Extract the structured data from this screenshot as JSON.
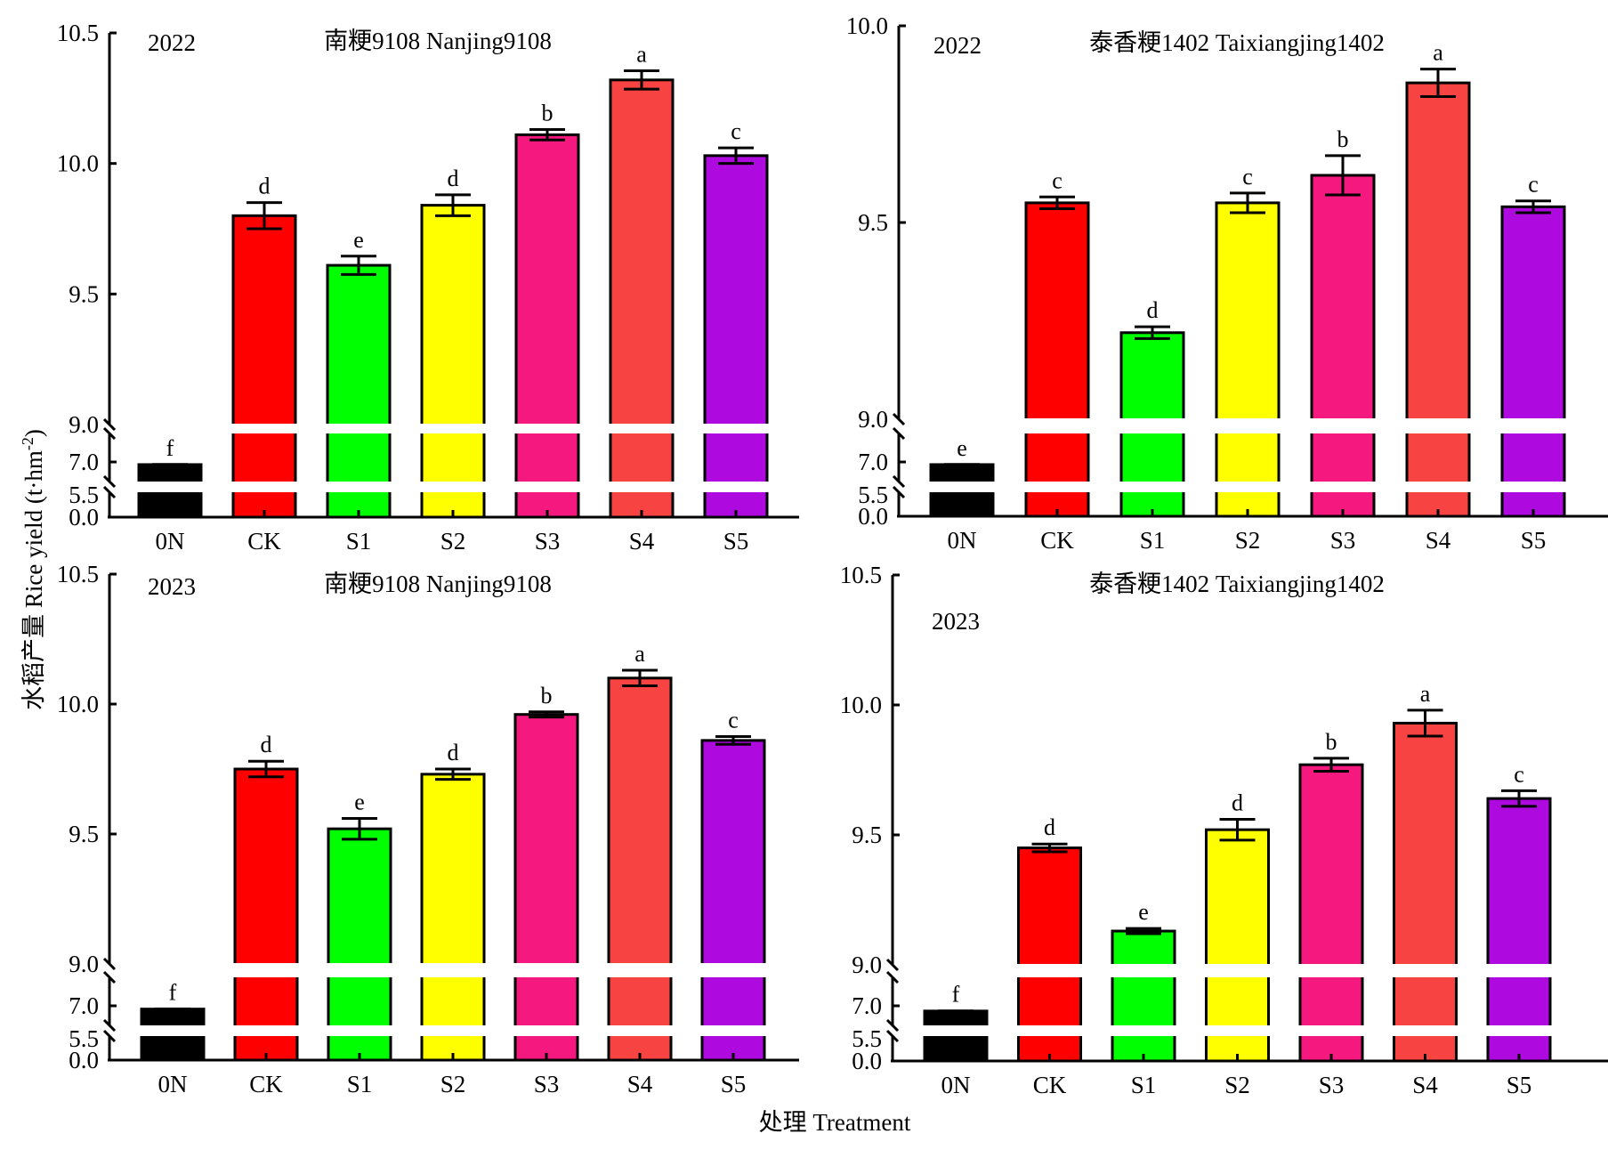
{
  "chart_data": {
    "type": "bar",
    "xlabel": "处理 Treatment",
    "ylabel": "水稻产量 Rice yield (t·hm",
    "ylabel_sup": "-2",
    "ylabel_close": ")",
    "categories": [
      "0N",
      "CK",
      "S1",
      "S2",
      "S3",
      "S4",
      "S5"
    ],
    "colors": [
      "#000000",
      "#ff0000",
      "#00ff00",
      "#ffff00",
      "#f5187e",
      "#f84343",
      "#ae0ae0"
    ],
    "axis_break": {
      "segments": [
        [
          0.0,
          5.5
        ],
        [
          5.5,
          9.0
        ]
      ],
      "labels": [
        "0.0",
        "5.5",
        "7.0",
        "9.0"
      ]
    },
    "panels": [
      {
        "year": "2022",
        "title": "南粳9108 Nanjing9108",
        "ylim_upper": [
          9.0,
          10.5
        ],
        "upper_ticks": [
          "9.0",
          "9.5",
          "10.0",
          "10.5"
        ],
        "values": [
          6.8,
          9.8,
          9.61,
          9.84,
          10.11,
          10.32,
          10.03
        ],
        "errors": [
          0.01,
          0.05,
          0.035,
          0.04,
          0.02,
          0.035,
          0.03
        ],
        "significance": [
          "f",
          "d",
          "e",
          "d",
          "b",
          "a",
          "c"
        ]
      },
      {
        "year": "2022",
        "title": "泰香粳1402 Taixiangjing1402",
        "ylim_upper": [
          9.0,
          10.0
        ],
        "upper_ticks": [
          "9.0",
          "9.5",
          "10.0"
        ],
        "values": [
          6.8,
          9.55,
          9.22,
          9.55,
          9.62,
          9.855,
          9.54
        ],
        "errors": [
          0.01,
          0.015,
          0.015,
          0.025,
          0.05,
          0.035,
          0.015
        ],
        "significance": [
          "e",
          "c",
          "d",
          "c",
          "b",
          "a",
          "c"
        ]
      },
      {
        "year": "2023",
        "title": "南粳9108 Nanjing9108",
        "ylim_upper": [
          9.0,
          10.5
        ],
        "upper_ticks": [
          "9.0",
          "9.5",
          "10.0",
          "10.5"
        ],
        "values": [
          6.75,
          9.75,
          9.52,
          9.73,
          9.96,
          10.1,
          9.86
        ],
        "errors": [
          0.01,
          0.03,
          0.04,
          0.02,
          0.01,
          0.03,
          0.015
        ],
        "significance": [
          "f",
          "d",
          "e",
          "d",
          "b",
          "a",
          "c"
        ]
      },
      {
        "year": "2023",
        "title": "泰香粳1402 Taixiangjing1402",
        "ylim_upper": [
          9.0,
          10.5
        ],
        "upper_ticks": [
          "9.0",
          "9.5",
          "10.0",
          "10.5"
        ],
        "values": [
          6.6,
          9.45,
          9.13,
          9.52,
          9.77,
          9.93,
          9.64
        ],
        "errors": [
          0.01,
          0.015,
          0.01,
          0.04,
          0.025,
          0.05,
          0.03
        ],
        "significance": [
          "f",
          "d",
          "e",
          "d",
          "b",
          "a",
          "c"
        ]
      }
    ]
  }
}
